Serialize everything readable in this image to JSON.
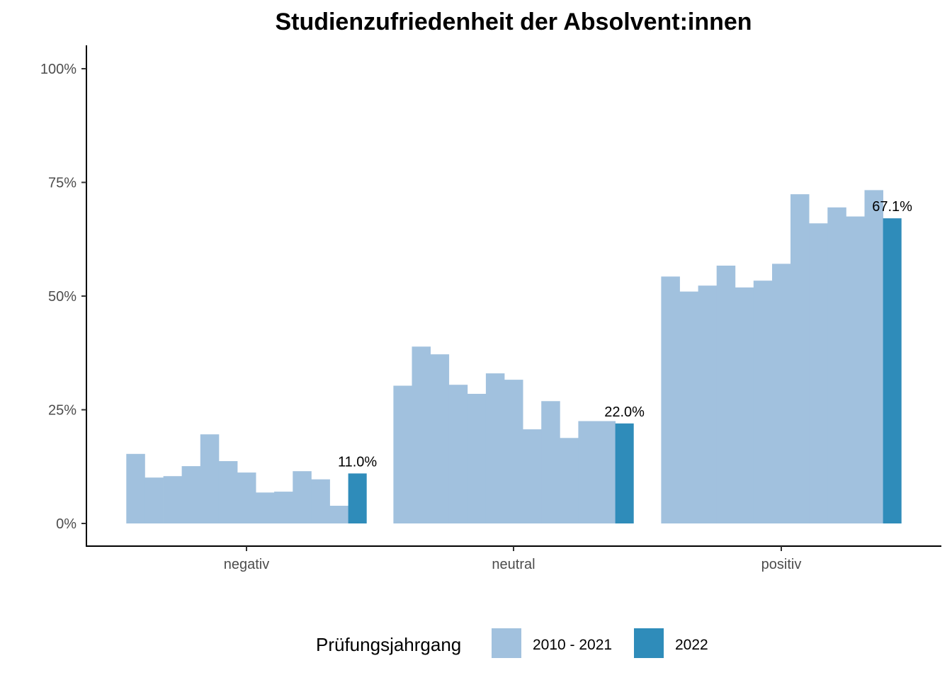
{
  "chart_data": {
    "type": "bar",
    "title": "Studienzufriedenheit der Absolvent:innen",
    "xlabel": "",
    "ylabel": "",
    "categories": [
      "negativ",
      "neutral",
      "positiv"
    ],
    "y_tick_labels": [
      "0%",
      "25%",
      "50%",
      "75%",
      "100%"
    ],
    "ylim": [
      0,
      1.05
    ],
    "grid": false,
    "legend": {
      "title": "Prüfungsjahrgang",
      "position": "bottom",
      "entries": [
        {
          "label": "2010 - 2021",
          "color": "#a1c1de"
        },
        {
          "label": "2022",
          "color": "#2f8cba"
        }
      ]
    },
    "series": [
      {
        "name": "2010 - 2021",
        "color": "#a1c1de",
        "values": [
          [
            0.153,
            0.101,
            0.104,
            0.126,
            0.196,
            0.137,
            0.112,
            0.068,
            0.07,
            0.115,
            0.097,
            0.039
          ],
          [
            0.303,
            0.389,
            0.372,
            0.305,
            0.285,
            0.33,
            0.316,
            0.207,
            0.269,
            0.188,
            0.225,
            0.225
          ],
          [
            0.543,
            0.51,
            0.523,
            0.567,
            0.519,
            0.534,
            0.571,
            0.724,
            0.66,
            0.695,
            0.675,
            0.733
          ]
        ]
      },
      {
        "name": "2022",
        "color": "#2f8cba",
        "values": [
          0.11,
          0.22,
          0.671
        ],
        "labels": [
          "11.0%",
          "22.0%",
          "67.1%"
        ]
      }
    ]
  }
}
